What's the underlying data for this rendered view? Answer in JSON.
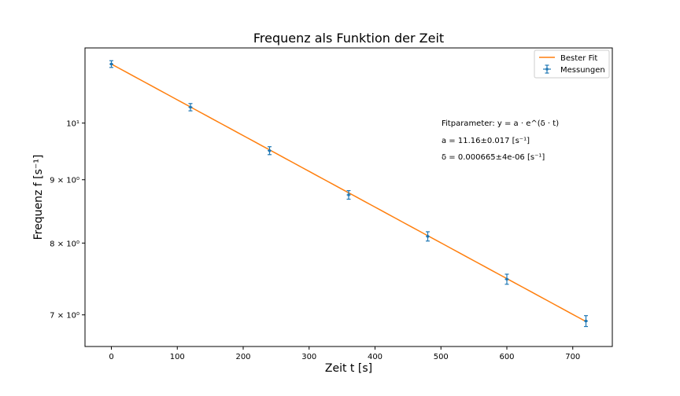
{
  "chart_data": {
    "type": "scatter",
    "title": "Frequenz als Funktion der Zeit",
    "xlabel": "Zeit t [s]",
    "ylabel": "Frequenz f [s⁻¹]",
    "y_scale": "log",
    "xlim": [
      -40,
      760
    ],
    "ylim": [
      6.6,
      11.5
    ],
    "x_ticks": [
      0,
      100,
      200,
      300,
      400,
      500,
      600,
      700
    ],
    "x_tick_labels": [
      "0",
      "100",
      "200",
      "300",
      "400",
      "500",
      "600",
      "700"
    ],
    "y_ticks": [
      7,
      8,
      9,
      10
    ],
    "y_tick_labels": [
      "7 × 10⁰",
      "8 × 10⁰",
      "9 × 10⁰",
      "10¹"
    ],
    "grid": false,
    "legend_position": "top-right",
    "series": [
      {
        "name": "Messungen",
        "kind": "errorbar",
        "color": "#1f77b4",
        "x": [
          0,
          120,
          240,
          360,
          480,
          600,
          720
        ],
        "y": [
          11.16,
          10.3,
          9.5,
          8.75,
          8.1,
          7.48,
          6.92
        ],
        "y_err": [
          0.07,
          0.07,
          0.07,
          0.07,
          0.07,
          0.07,
          0.07
        ],
        "x_err": [
          3,
          3,
          3,
          3,
          3,
          3,
          3
        ]
      },
      {
        "name": "Bester Fit",
        "kind": "line",
        "color": "#ff7f0e",
        "model": "exp_decay",
        "a": 11.16,
        "delta": 0.000665,
        "x_range": [
          0,
          720
        ]
      }
    ],
    "annotations": [
      "Fitparameter: y = a · e^(δ · t)",
      "a = 11.16±0.017 [s⁻¹]",
      "δ = 0.000665±4e-06 [s⁻¹]"
    ]
  }
}
